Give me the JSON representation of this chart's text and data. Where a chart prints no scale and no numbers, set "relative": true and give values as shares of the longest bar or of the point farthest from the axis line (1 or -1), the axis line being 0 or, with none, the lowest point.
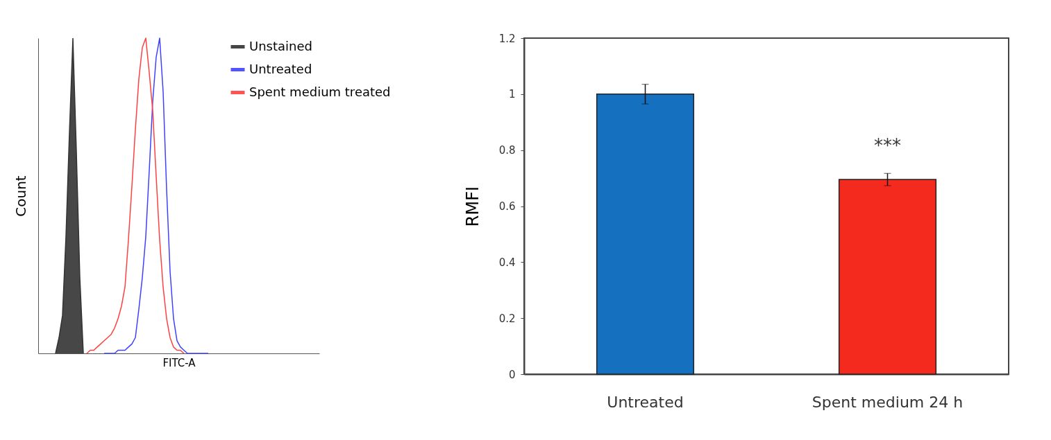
{
  "chart_data": [
    {
      "type": "line",
      "xlabel": "FITC-A",
      "ylabel": "Count",
      "relative": true,
      "grid": false,
      "legend": "top right",
      "marker": "none",
      "categories": [
        null,
        null,
        null,
        null,
        null,
        null,
        null,
        null,
        null,
        null,
        null,
        null,
        null,
        null,
        null,
        null,
        null,
        null,
        null,
        null,
        null,
        null,
        null,
        null,
        null,
        null,
        null,
        null,
        null,
        null,
        null,
        null,
        null,
        null,
        null,
        null,
        null,
        null,
        null,
        null,
        null,
        null,
        null,
        null,
        null,
        null,
        null,
        null,
        null,
        null,
        null,
        null,
        null,
        null,
        null,
        null,
        null,
        null,
        null,
        null,
        null,
        null,
        null,
        null,
        null,
        null,
        null,
        null,
        null,
        null,
        null,
        null,
        null,
        null,
        null,
        null,
        null,
        null,
        null,
        null,
        null,
        null
      ],
      "series": [
        {
          "name": "Unstained",
          "type": "area",
          "color": "#333333",
          "values": [
            null,
            null,
            null,
            null,
            null,
            0,
            0.05,
            0.12,
            0.37,
            0.7,
            1,
            0.64,
            0.24,
            0,
            null,
            null,
            null,
            null,
            null,
            null,
            null,
            null,
            null,
            null,
            null,
            null,
            null,
            null,
            null,
            null,
            null,
            null,
            null,
            null,
            null,
            null,
            null,
            null,
            null,
            null,
            null,
            null,
            null,
            null,
            null,
            null,
            null,
            null,
            null,
            null,
            null,
            null,
            null,
            null,
            null,
            null,
            null,
            null,
            null,
            null,
            null,
            null,
            null,
            null,
            null,
            null,
            null,
            null,
            null,
            null,
            null,
            null,
            null,
            null,
            null,
            null,
            null,
            null,
            null,
            null,
            null,
            null
          ]
        },
        {
          "name": "Untreated",
          "type": "line",
          "color": "#4040ff",
          "values": [
            null,
            null,
            null,
            null,
            null,
            null,
            null,
            null,
            null,
            null,
            null,
            null,
            null,
            null,
            null,
            null,
            null,
            null,
            null,
            0,
            0,
            0,
            0,
            0.01,
            0.01,
            0.01,
            0.02,
            0.03,
            0.05,
            0.14,
            0.24,
            0.37,
            0.58,
            0.8,
            0.94,
            1,
            0.83,
            0.52,
            0.26,
            0.11,
            0.04,
            0.02,
            0.01,
            0,
            0,
            0,
            0,
            0,
            0,
            0,
            null,
            null,
            null,
            null,
            null,
            null,
            null,
            null,
            null,
            null,
            null,
            null,
            null,
            null,
            null,
            null,
            null,
            null,
            null,
            null,
            null,
            null,
            null,
            null,
            null,
            null,
            null,
            null,
            null,
            null,
            null,
            null
          ]
        },
        {
          "name": "Spent medium treated",
          "type": "line",
          "color": "#ff4040",
          "values": [
            null,
            null,
            null,
            null,
            null,
            null,
            null,
            null,
            null,
            null,
            null,
            null,
            null,
            null,
            0,
            0.01,
            0.01,
            0.02,
            0.03,
            0.04,
            0.05,
            0.06,
            0.08,
            0.11,
            0.15,
            0.21,
            0.36,
            0.53,
            0.71,
            0.87,
            0.97,
            1,
            0.89,
            0.77,
            0.56,
            0.36,
            0.21,
            0.11,
            0.05,
            0.02,
            0.01,
            0.01,
            0,
            null,
            null,
            null,
            null,
            null,
            null,
            null,
            null,
            null,
            null,
            null,
            null,
            null,
            null,
            null,
            null,
            null,
            null,
            null,
            null,
            null,
            null,
            null,
            null,
            null,
            null,
            null,
            null,
            null,
            null,
            null,
            null,
            null,
            null,
            null,
            null,
            null,
            null,
            null
          ]
        }
      ]
    },
    {
      "type": "bar",
      "ylabel": "RMFI",
      "grid": false,
      "categories": [
        "Untreated",
        "Spent medium 24 h"
      ],
      "values": [
        1,
        0.695
      ],
      "colors": [
        "#1570c0",
        "#f52a1e"
      ],
      "errors": [
        0.035,
        0.022
      ],
      "ylim": [
        0,
        1.2
      ],
      "yticks": [
        0,
        0.2,
        0.4,
        0.6,
        0.8,
        1,
        1.2
      ],
      "annotations": [
        {
          "text": "***",
          "x": "Spent medium 24 h",
          "y": 0.695
        }
      ]
    }
  ]
}
